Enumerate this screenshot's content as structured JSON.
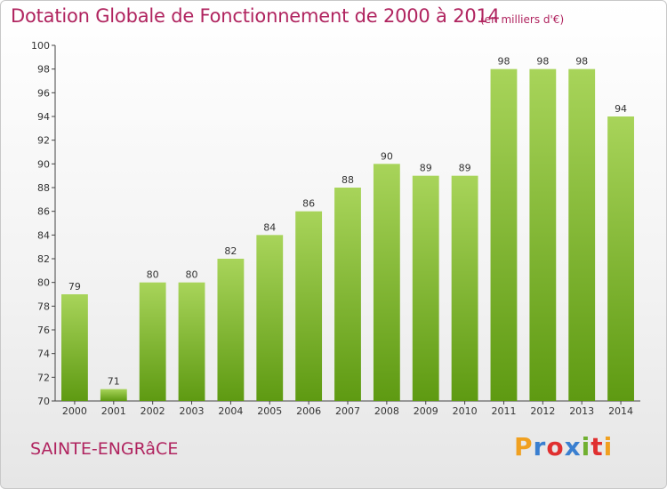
{
  "title": "Dotation Globale de Fonctionnement de 2000 à 2014",
  "subtitle": "(en milliers d'€)",
  "commune": "SAINTE-ENGRâCE",
  "logo": {
    "letters": [
      "P",
      "r",
      "o",
      "x",
      "i",
      "t",
      "i"
    ],
    "colors": [
      "#f0a020",
      "#3a7fd0",
      "#e03030",
      "#3a7fd0",
      "#70b030",
      "#e03030",
      "#f0a020"
    ]
  },
  "colors": {
    "bar_top": "#a8d45a",
    "bar_bottom": "#5e9a12",
    "title": "#b0245f"
  },
  "chart_data": {
    "type": "bar",
    "categories": [
      "2000",
      "2001",
      "2002",
      "2003",
      "2004",
      "2005",
      "2006",
      "2007",
      "2008",
      "2009",
      "2010",
      "2011",
      "2012",
      "2013",
      "2014"
    ],
    "values": [
      79,
      71,
      80,
      80,
      82,
      84,
      86,
      88,
      90,
      89,
      89,
      98,
      98,
      98,
      94
    ],
    "ylim": [
      70,
      100
    ],
    "yticks": [
      70,
      72,
      74,
      76,
      78,
      80,
      82,
      84,
      86,
      88,
      90,
      92,
      94,
      96,
      98,
      100
    ],
    "grid": false,
    "data_labels": true
  }
}
